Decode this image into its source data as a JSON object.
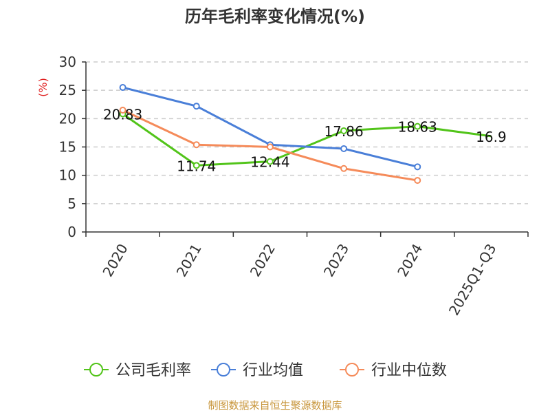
{
  "chart_data": {
    "type": "line",
    "title": "历年毛利率变化情况(%)",
    "ylabel": "(%)",
    "xlabel": "",
    "ylim": [
      0,
      30
    ],
    "yticks": [
      0,
      5,
      10,
      15,
      20,
      25,
      30
    ],
    "grid": true,
    "legend_position": "bottom",
    "categories": [
      "2020",
      "2021",
      "2022",
      "2023",
      "2024",
      "2025Q1-Q3"
    ],
    "series": [
      {
        "name": "公司毛利率",
        "color": "#52c41a",
        "values": [
          20.83,
          11.74,
          12.44,
          17.86,
          18.63,
          16.9
        ],
        "labels": [
          "20.83",
          "11.74",
          "12.44",
          "17.86",
          "18.63",
          "16.9"
        ]
      },
      {
        "name": "行业均值",
        "color": "#4a7fd8",
        "values": [
          25.5,
          22.2,
          15.4,
          14.7,
          11.5,
          null
        ]
      },
      {
        "name": "行业中位数",
        "color": "#f58b5a",
        "values": [
          21.5,
          15.4,
          15.0,
          11.2,
          9.1,
          null
        ]
      }
    ],
    "source": "制图数据来自恒生聚源数据库"
  },
  "colors": {
    "title": "#333333",
    "axis": "#333333",
    "grid": "#cccccc",
    "ylabel": "#e02020",
    "source": "#c8963c"
  }
}
